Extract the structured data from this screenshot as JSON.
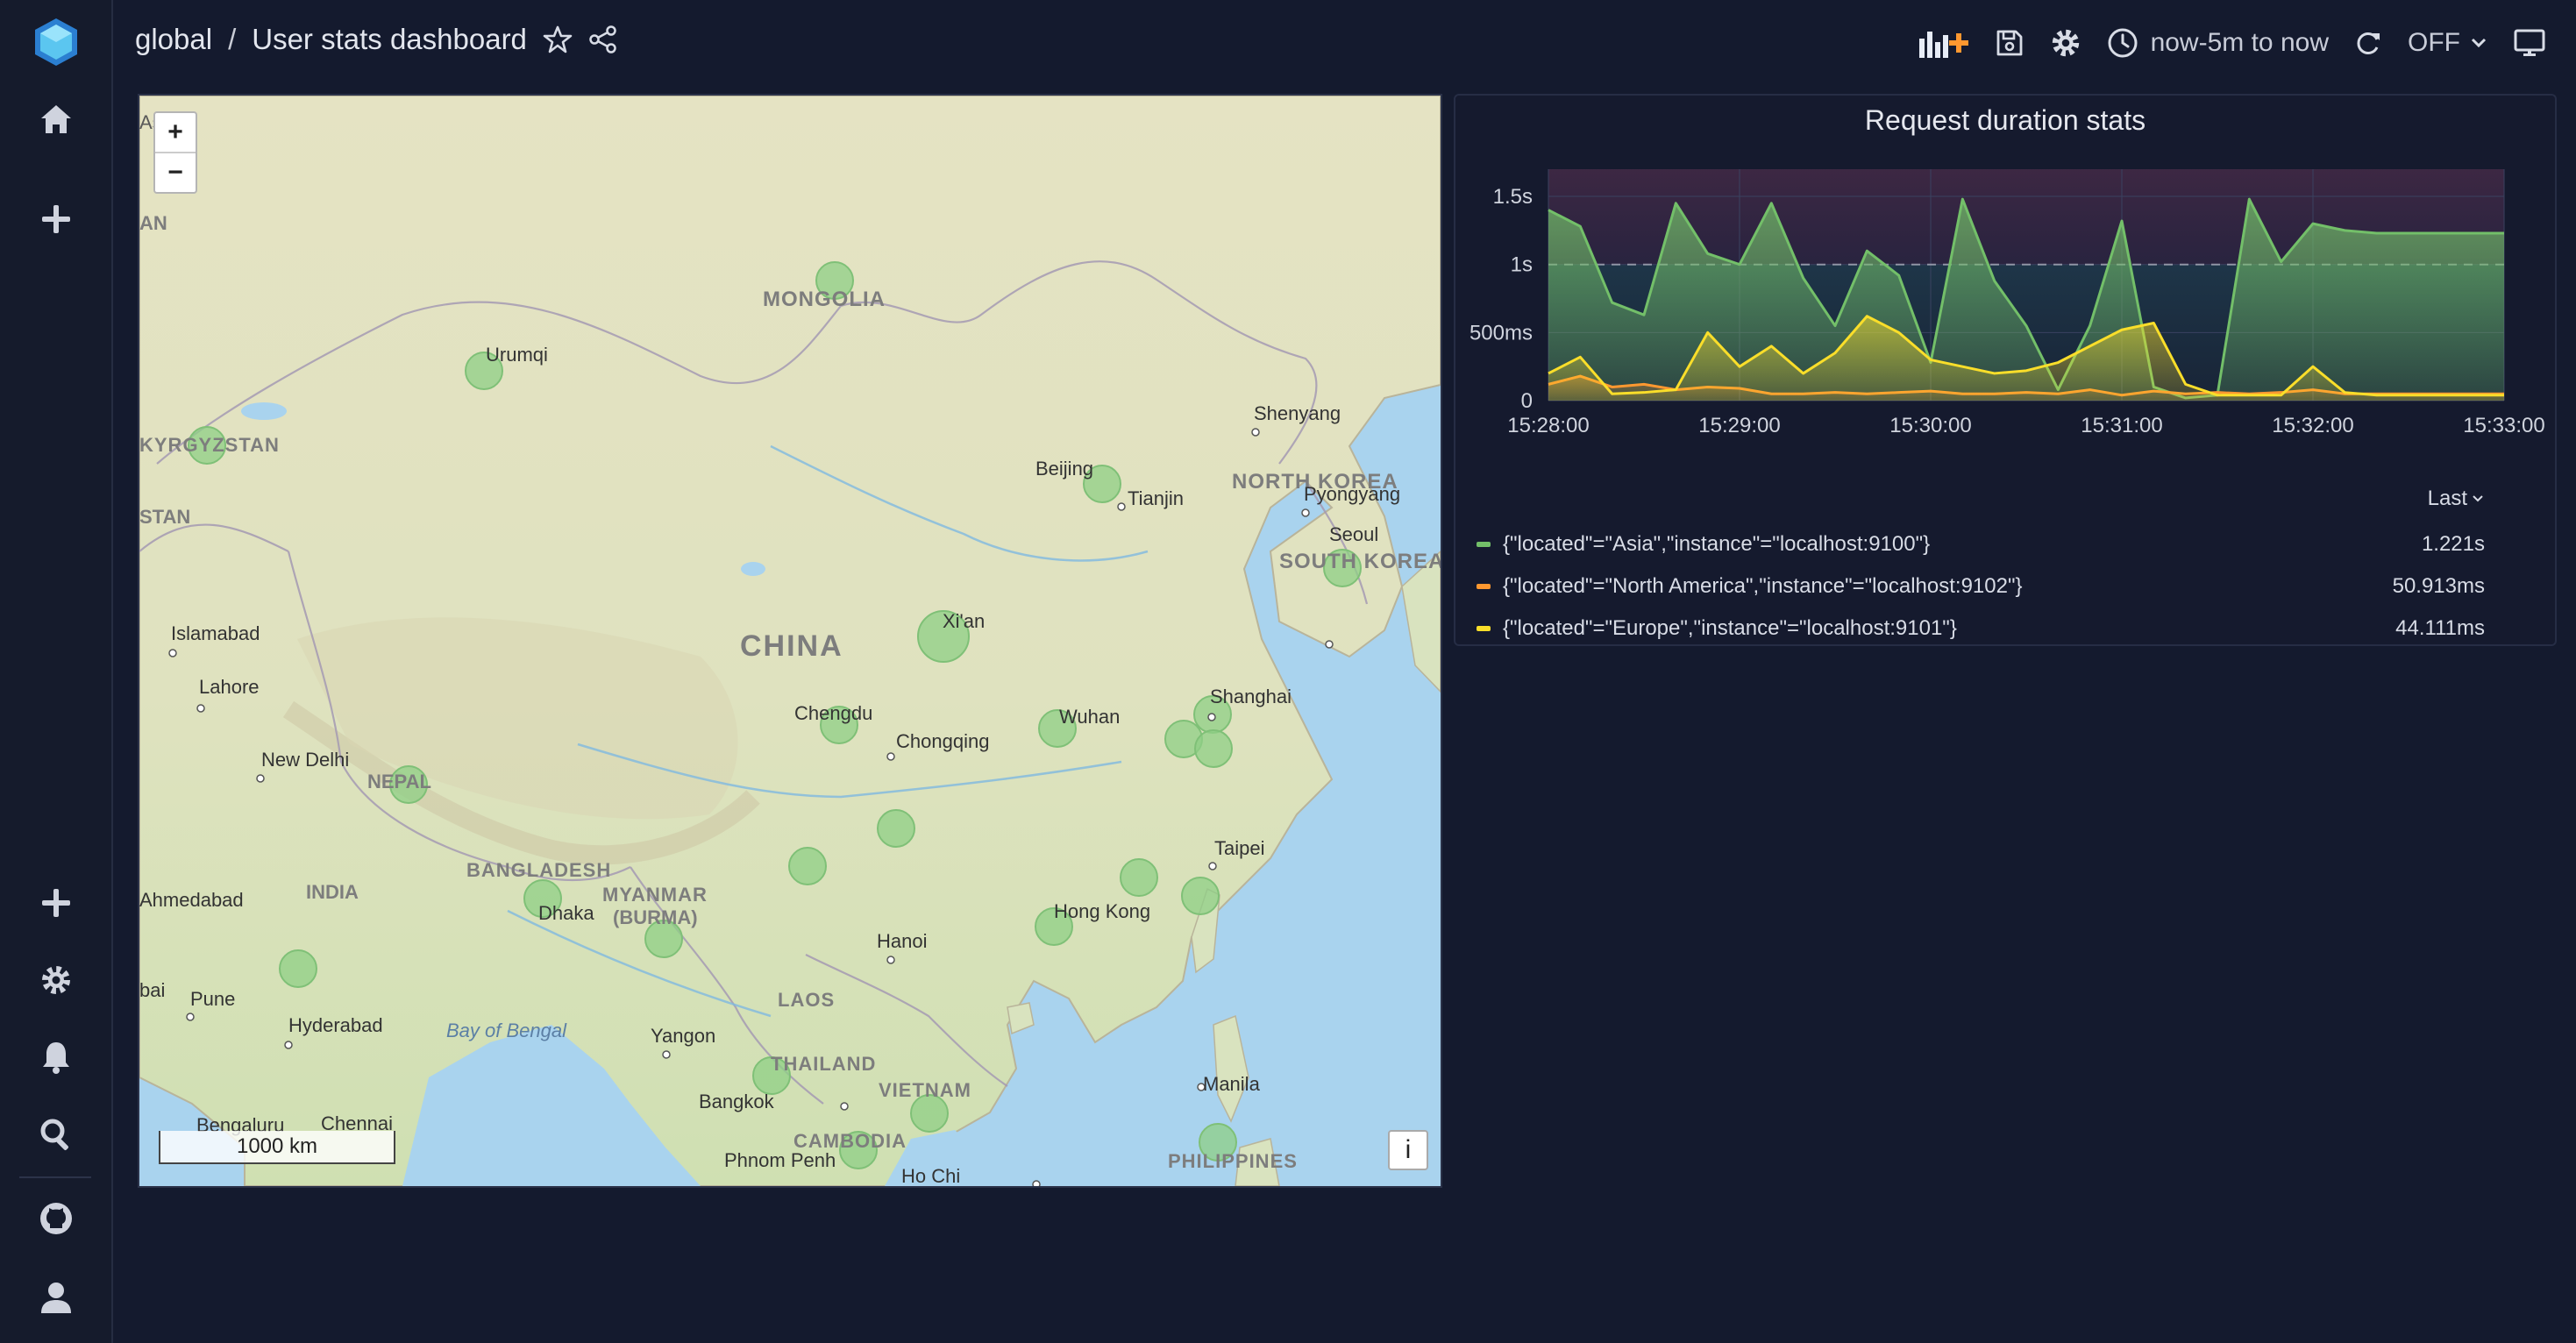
{
  "breadcrumb": {
    "folder": "global",
    "separator": "/",
    "title": "User stats dashboard"
  },
  "toolbar": {
    "time_range": "now-5m to now",
    "refresh": "OFF"
  },
  "map": {
    "zoom_in": "+",
    "zoom_out": "−",
    "scale": "1000 km",
    "info": "i",
    "labels": {
      "asia": "Asia",
      "an": "AN",
      "mongolia": "MONGOLIA",
      "urumqi": "Urumqi",
      "kyrgyzstan": "KYRGYZSTAN",
      "stan": "STAN",
      "shenyang": "Shenyang",
      "beijing": "Beijing",
      "tianjin": "Tianjin",
      "north_korea": "NORTH KOREA",
      "pyongyang": "Pyongyang",
      "seoul": "Seoul",
      "south_korea": "SOUTH KOREA",
      "islamabad": "Islamabad",
      "lahore": "Lahore",
      "china": "CHINA",
      "xian": "Xi'an",
      "chengdu": "Chengdu",
      "chongqing": "Chongqing",
      "wuhan": "Wuhan",
      "shanghai": "Shanghai",
      "new_delhi": "New Delhi",
      "nepal": "NEPAL",
      "taipei": "Taipei",
      "ahmedabad": "Ahmedabad",
      "india": "INDIA",
      "bangladesh": "BANGLADESH",
      "dhaka": "Dhaka",
      "myanmar": "MYANMAR",
      "burma": "(BURMA)",
      "hanoi": "Hanoi",
      "hong_kong": "Hong Kong",
      "bai": "bai",
      "pune": "Pune",
      "hyderabad": "Hyderabad",
      "bay_of_bengal": "Bay of Bengal",
      "laos": "LAOS",
      "yangon": "Yangon",
      "thailand": "THAILAND",
      "vietnam": "VIETNAM",
      "manila": "Manila",
      "bangkok": "Bangkok",
      "bengaluru": "Bengaluru",
      "chennai": "Chennai",
      "cambodia": "CAMBODIA",
      "phnom_penh": "Phnom Penh",
      "ho_chi": "Ho Chi",
      "philippines": "PHILIPPINES"
    }
  },
  "graph": {
    "title": "Request duration stats",
    "legend_sort": "Last",
    "legend": [
      {
        "name": "{\"located\"=\"Asia\",\"instance\"=\"localhost:9100\"}",
        "value": "1.221s",
        "color": "#73bf69"
      },
      {
        "name": "{\"located\"=\"North America\",\"instance\"=\"localhost:9102\"}",
        "value": "50.913ms",
        "color": "#ff9830"
      },
      {
        "name": "{\"located\"=\"Europe\",\"instance\"=\"localhost:9101\"}",
        "value": "44.111ms",
        "color": "#fade2a"
      }
    ]
  },
  "chart_data": {
    "type": "area",
    "title": "Request duration stats",
    "x": [
      "15:28:00",
      "15:28:10",
      "15:28:20",
      "15:28:30",
      "15:28:40",
      "15:28:50",
      "15:29:00",
      "15:29:10",
      "15:29:20",
      "15:29:30",
      "15:29:40",
      "15:29:50",
      "15:30:00",
      "15:30:10",
      "15:30:20",
      "15:30:30",
      "15:30:40",
      "15:30:50",
      "15:31:00",
      "15:31:10",
      "15:31:20",
      "15:31:30",
      "15:31:40",
      "15:31:50",
      "15:32:00",
      "15:32:10",
      "15:32:20",
      "15:32:30",
      "15:32:40",
      "15:32:50",
      "15:33:00"
    ],
    "x_ticks": [
      "15:28:00",
      "15:29:00",
      "15:30:00",
      "15:31:00",
      "15:32:00",
      "15:33:00"
    ],
    "y_ticks": [
      {
        "v": 0,
        "label": "0"
      },
      {
        "v": 0.5,
        "label": "500ms"
      },
      {
        "v": 1,
        "label": "1s"
      },
      {
        "v": 1.5,
        "label": "1.5s"
      }
    ],
    "ylim": [
      0,
      1.7
    ],
    "threshold": 1.0,
    "series": [
      {
        "name": "{\"located\"=\"Asia\",\"instance\"=\"localhost:9100\"}",
        "color": "#73bf69",
        "values": [
          1.4,
          1.28,
          0.72,
          0.63,
          1.45,
          1.08,
          1.0,
          1.45,
          0.9,
          0.55,
          1.1,
          0.92,
          0.28,
          1.48,
          0.88,
          0.55,
          0.08,
          0.55,
          1.32,
          0.1,
          0.02,
          0.04,
          1.48,
          1.02,
          1.3,
          1.25,
          1.23,
          1.23,
          1.23,
          1.23,
          1.23
        ]
      },
      {
        "name": "{\"located\"=\"North America\",\"instance\"=\"localhost:9102\"}",
        "color": "#ff9830",
        "values": [
          0.12,
          0.18,
          0.1,
          0.12,
          0.08,
          0.1,
          0.09,
          0.05,
          0.05,
          0.06,
          0.05,
          0.06,
          0.07,
          0.05,
          0.05,
          0.06,
          0.05,
          0.08,
          0.04,
          0.07,
          0.05,
          0.06,
          0.05,
          0.06,
          0.08,
          0.05,
          0.05,
          0.05,
          0.05,
          0.05,
          0.05
        ]
      },
      {
        "name": "{\"located\"=\"Europe\",\"instance\"=\"localhost:9101\"}",
        "color": "#fade2a",
        "values": [
          0.2,
          0.32,
          0.05,
          0.06,
          0.08,
          0.5,
          0.25,
          0.4,
          0.2,
          0.35,
          0.62,
          0.5,
          0.3,
          0.25,
          0.2,
          0.22,
          0.28,
          0.4,
          0.52,
          0.57,
          0.12,
          0.04,
          0.04,
          0.04,
          0.25,
          0.06,
          0.04,
          0.04,
          0.04,
          0.04,
          0.04
        ]
      }
    ]
  }
}
